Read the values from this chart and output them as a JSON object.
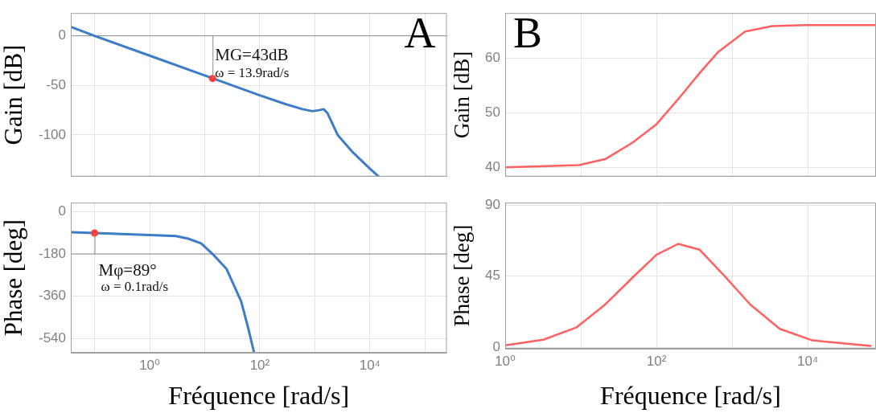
{
  "chart_data": [
    {
      "type": "line",
      "ylabel": "Gain [dB]",
      "log": "x",
      "grid": true,
      "tick_labels": "y",
      "xlim": [
        0.037,
        250000
      ],
      "xticks": [
        {
          "value": 0.1,
          "label": null
        },
        {
          "value": 1,
          "label": null
        },
        {
          "value": 10,
          "label": null
        },
        {
          "value": 100,
          "label": null
        },
        {
          "value": 1000,
          "label": null
        },
        {
          "value": 10000,
          "label": null
        },
        {
          "value": 100000,
          "label": null
        }
      ],
      "ylim": [
        -142,
        23
      ],
      "yticks": [
        0,
        -50,
        -100
      ],
      "ref_lines": [
        {
          "axis": "y",
          "value": 0,
          "label": null
        }
      ],
      "series": [
        {
          "color": "#3d7cc9",
          "x": [
            0.037,
            0.1,
            1,
            10,
            100,
            300,
            600,
            900,
            1200,
            1450,
            1700,
            2600,
            5000,
            10000,
            14500
          ],
          "values": [
            9,
            0,
            -20,
            -40,
            -60,
            -69,
            -74,
            -76,
            -75,
            -74,
            -78,
            -100,
            -118,
            -134,
            -142
          ]
        },
        {
          "type": "scatter",
          "color": "#ff3b3b",
          "x": [
            13.9
          ],
          "values": [
            -43
          ]
        }
      ],
      "annotations": [
        {
          "text": "MG=43dB\nω = 13.9rad/s",
          "x": 13.9,
          "y": -43
        },
        "A"
      ]
    },
    {
      "type": "line",
      "ylabel": "Phase [deg]",
      "xlabel": "Fréquence [rad/s]",
      "log": "x",
      "grid": true,
      "xlim": [
        0.037,
        250000
      ],
      "xticks": [
        {
          "value": 0.1,
          "label": null
        },
        {
          "value": 1,
          "label": "10⁰"
        },
        {
          "value": 10,
          "label": null
        },
        {
          "value": 100,
          "label": "10²"
        },
        {
          "value": 1000,
          "label": null
        },
        {
          "value": 10000,
          "label": "10⁴"
        },
        {
          "value": 100000,
          "label": null
        }
      ],
      "ylim": [
        -600,
        38
      ],
      "yticks": [
        0,
        -180,
        -360,
        -540
      ],
      "ref_lines": [
        {
          "axis": "y",
          "value": -180,
          "label": null
        }
      ],
      "series": [
        {
          "color": "#3d7cc9",
          "x": [
            0.037,
            0.1,
            1,
            3,
            5,
            8.6,
            13.9,
            25,
            46,
            62,
            79
          ],
          "values": [
            -88,
            -91,
            -100,
            -104,
            -115,
            -135,
            -180,
            -244,
            -382,
            -497,
            -600
          ]
        },
        {
          "type": "scatter",
          "color": "#ff3b3b",
          "x": [
            0.1
          ],
          "values": [
            -91
          ]
        }
      ],
      "annotations": [
        {
          "text": "Mφ=89°\nω = 0.1rad/s",
          "x": 0.1,
          "y": -91
        }
      ]
    },
    {
      "type": "line",
      "ylabel": "Gain [dB]",
      "log": "x",
      "grid": true,
      "tick_labels": "y",
      "xlim": [
        1,
        80000
      ],
      "xticks": [
        {
          "value": 1,
          "label": null
        },
        {
          "value": 10,
          "label": null
        },
        {
          "value": 100,
          "label": null
        },
        {
          "value": 1000,
          "label": null
        },
        {
          "value": 10000,
          "label": null
        }
      ],
      "ylim": [
        38.3,
        68.3
      ],
      "yticks": [
        40,
        50,
        60
      ],
      "series": [
        {
          "color": "#ff6060",
          "x": [
            1,
            9.4,
            21,
            48,
            100,
            194,
            373,
            660,
            1490,
            3370,
            9100,
            80000
          ],
          "values": [
            40,
            40.4,
            41.5,
            44.5,
            47.9,
            52.5,
            57.3,
            61.2,
            64.9,
            65.9,
            66.1,
            66.1
          ]
        }
      ],
      "annotations": [
        "B"
      ]
    },
    {
      "type": "line",
      "ylabel": "Phase [deg]",
      "xlabel": "Fréquence [rad/s]",
      "log": "x",
      "grid": true,
      "xlim": [
        1,
        80000
      ],
      "xticks": [
        {
          "value": 1,
          "label": "10⁰"
        },
        {
          "value": 10,
          "label": null
        },
        {
          "value": 100,
          "label": "10²"
        },
        {
          "value": 1000,
          "label": null
        },
        {
          "value": 10000,
          "label": "10⁴"
        }
      ],
      "ylim": [
        -1,
        91.5
      ],
      "yticks": [
        0,
        45,
        90
      ],
      "series": [
        {
          "color": "#ff6060",
          "x": [
            1,
            3.2,
            8.7,
            21,
            48,
            100,
            194,
            373,
            780,
            1740,
            4270,
            11500,
            68000
          ],
          "values": [
            1.1,
            4.7,
            12.4,
            27,
            43.9,
            58.5,
            65.4,
            61.7,
            45.5,
            27,
            11.6,
            4.3,
            0.8
          ]
        }
      ]
    }
  ]
}
